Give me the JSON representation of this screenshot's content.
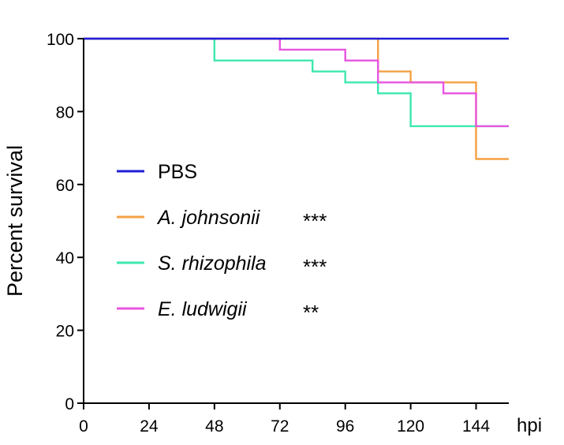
{
  "chart_data": {
    "type": "line",
    "step": true,
    "title": "",
    "xlabel": "hpi",
    "ylabel": "Percent survival",
    "xlim": [
      0,
      156
    ],
    "ylim": [
      0,
      100
    ],
    "xticks": [
      0,
      24,
      48,
      72,
      96,
      120,
      144
    ],
    "yticks": [
      0,
      20,
      40,
      60,
      80,
      100
    ],
    "grid": false,
    "legend_position": "center-left",
    "series": [
      {
        "name": "PBS",
        "significance": "",
        "color": "#1f1fd6",
        "italic": false,
        "x": [
          0,
          156
        ],
        "y": [
          100,
          100
        ]
      },
      {
        "name": "A. johnsonii",
        "significance": "***",
        "color": "#f5a044",
        "italic": true,
        "x": [
          0,
          108,
          108,
          120,
          120,
          144,
          144,
          156
        ],
        "y": [
          100,
          100,
          91,
          91,
          88,
          88,
          67,
          67
        ]
      },
      {
        "name": "S. rhizophila",
        "significance": "***",
        "color": "#3de8b0",
        "italic": true,
        "x": [
          0,
          48,
          48,
          84,
          84,
          96,
          96,
          108,
          108,
          120,
          120,
          144,
          144,
          156
        ],
        "y": [
          100,
          100,
          94,
          94,
          91,
          91,
          88,
          88,
          85,
          85,
          76,
          76,
          76,
          76
        ]
      },
      {
        "name": "E. ludwigii",
        "significance": "**",
        "color": "#e855e0",
        "italic": true,
        "x": [
          0,
          72,
          72,
          96,
          96,
          108,
          108,
          132,
          132,
          144,
          144,
          156
        ],
        "y": [
          100,
          100,
          97,
          97,
          94,
          94,
          88,
          88,
          85,
          85,
          76,
          76
        ]
      }
    ]
  }
}
